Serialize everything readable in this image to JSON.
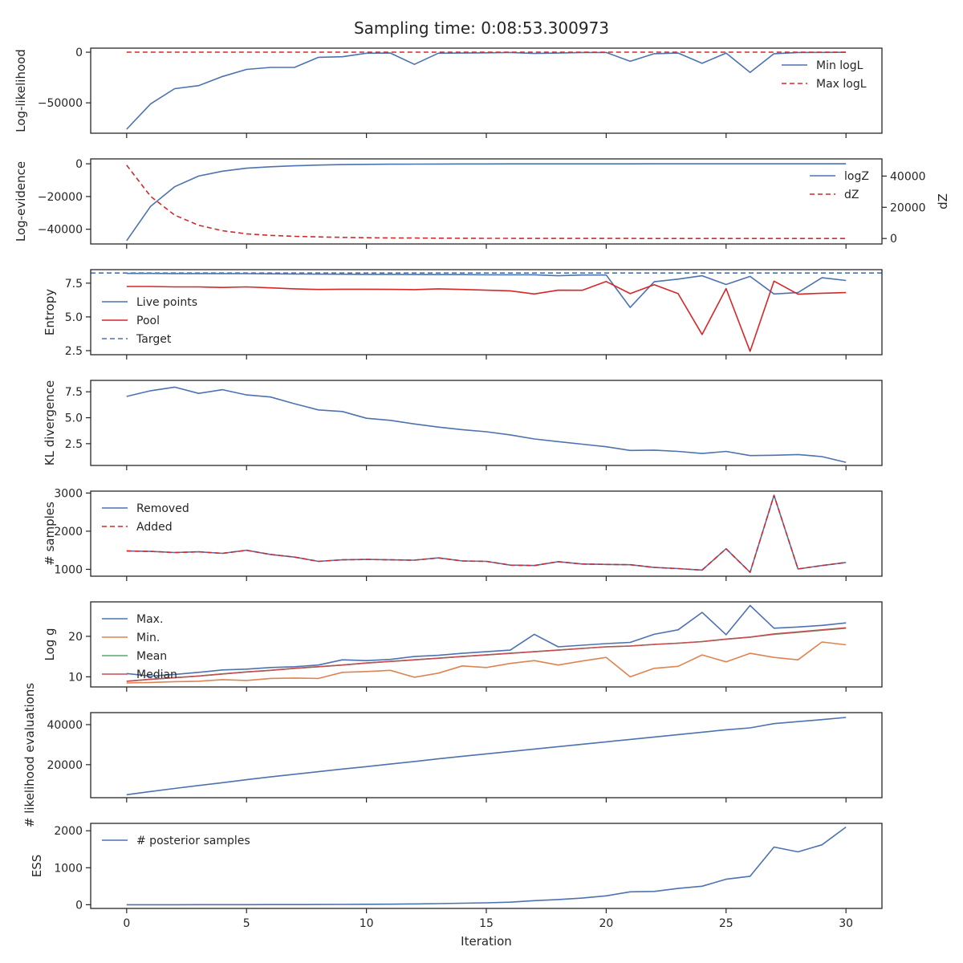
{
  "figure": {
    "title": "Sampling time: 0:08:53.300973",
    "xlabel": "Iteration"
  },
  "colors": {
    "blue": "#4c72b0",
    "red": "#d62728",
    "orange": "#dd8452",
    "green": "#55a868",
    "crimson": "#c44e52",
    "axis": "#262626"
  },
  "chart_data": [
    {
      "type": "line",
      "ylabel": "Log-likelihood",
      "xlim": [
        -1.5,
        31.5
      ],
      "ylim": [
        -80000,
        4000
      ],
      "yticks": [
        0,
        -50000
      ],
      "legend_position": "upper-right",
      "x": [
        0,
        1,
        2,
        3,
        4,
        5,
        6,
        7,
        8,
        9,
        10,
        11,
        12,
        13,
        14,
        15,
        16,
        17,
        18,
        19,
        20,
        21,
        22,
        23,
        24,
        25,
        26,
        27,
        28,
        29,
        30
      ],
      "series": [
        {
          "name": "Min logL",
          "color": "#4c72b0",
          "dash": "solid",
          "values": [
            -76000,
            -51000,
            -36000,
            -33000,
            -24000,
            -17000,
            -15000,
            -15000,
            -5000,
            -4500,
            -1000,
            -800,
            -12000,
            -1000,
            -800,
            -600,
            -300,
            -1200,
            -800,
            -300,
            -300,
            -9000,
            -1500,
            -800,
            -11000,
            -800,
            -20000,
            -1500,
            -300,
            -200,
            -100
          ]
        },
        {
          "name": "Max logL",
          "color": "#d62728",
          "dash": "dashed",
          "values": [
            0,
            0,
            0,
            0,
            0,
            0,
            0,
            0,
            0,
            0,
            0,
            0,
            0,
            0,
            0,
            0,
            0,
            0,
            0,
            0,
            0,
            0,
            0,
            0,
            0,
            0,
            0,
            0,
            0,
            0,
            0
          ]
        }
      ]
    },
    {
      "type": "line",
      "ylabel": "Log-evidence",
      "ylabel_right": "dZ",
      "xlim": [
        -1.5,
        31.5
      ],
      "ylim": [
        -49000,
        3000
      ],
      "yticks": [
        0,
        -20000,
        -40000
      ],
      "ylim_right": [
        -3500,
        51000
      ],
      "yticks_right": [
        40000,
        20000,
        0
      ],
      "legend_position": "upper-right",
      "x": [
        0,
        1,
        2,
        3,
        4,
        5,
        6,
        7,
        8,
        9,
        10,
        11,
        12,
        13,
        14,
        15,
        16,
        17,
        18,
        19,
        20,
        21,
        22,
        23,
        24,
        25,
        26,
        27,
        28,
        29,
        30
      ],
      "series": [
        {
          "name": "logZ",
          "color": "#4c72b0",
          "dash": "solid",
          "axis": "left",
          "values": [
            -47000,
            -26000,
            -14000,
            -7500,
            -4500,
            -2700,
            -1800,
            -1200,
            -800,
            -500,
            -350,
            -250,
            -180,
            -130,
            -100,
            -80,
            -60,
            -50,
            -40,
            -30,
            -25,
            -20,
            -15,
            -12,
            -10,
            -8,
            -6,
            -5,
            -4,
            -3,
            -2
          ]
        },
        {
          "name": "dZ",
          "color": "#d62728",
          "dash": "dashed",
          "axis": "right",
          "values": [
            47000,
            27000,
            15000,
            8500,
            5000,
            3000,
            2000,
            1400,
            1000,
            700,
            500,
            380,
            280,
            200,
            150,
            110,
            80,
            60,
            50,
            40,
            30,
            25,
            20,
            15,
            12,
            10,
            8,
            6,
            5,
            4,
            3
          ]
        }
      ]
    },
    {
      "type": "line",
      "ylabel": "Entropy",
      "xlim": [
        -1.5,
        31.5
      ],
      "ylim": [
        2.2,
        8.5
      ],
      "yticks": [
        7.5,
        5.0,
        2.5
      ],
      "yticklabels": [
        "7.5",
        "5.0",
        "2.5"
      ],
      "legend_position": "left",
      "x": [
        0,
        1,
        2,
        3,
        4,
        5,
        6,
        7,
        8,
        9,
        10,
        11,
        12,
        13,
        14,
        15,
        16,
        17,
        18,
        19,
        20,
        21,
        22,
        23,
        24,
        25,
        26,
        27,
        28,
        29,
        30
      ],
      "series": [
        {
          "name": "Live points",
          "color": "#4c72b0",
          "dash": "solid",
          "values": [
            8.22,
            8.22,
            8.21,
            8.21,
            8.21,
            8.2,
            8.19,
            8.18,
            8.17,
            8.16,
            8.15,
            8.15,
            8.14,
            8.13,
            8.13,
            8.12,
            8.12,
            8.12,
            8.05,
            8.1,
            8.1,
            5.7,
            7.6,
            7.8,
            8.05,
            7.4,
            8.0,
            6.7,
            6.8,
            7.9,
            7.7
          ]
        },
        {
          "name": "Pool",
          "color": "#d62728",
          "dash": "solid",
          "values": [
            7.25,
            7.25,
            7.22,
            7.22,
            7.18,
            7.22,
            7.15,
            7.08,
            7.03,
            7.05,
            7.05,
            7.04,
            7.02,
            7.08,
            7.03,
            6.98,
            6.93,
            6.7,
            6.98,
            6.97,
            7.62,
            6.72,
            7.38,
            6.72,
            3.7,
            7.1,
            2.45,
            7.65,
            6.68,
            6.75,
            6.8
          ]
        },
        {
          "name": "Target",
          "color": "#4c72b0",
          "dash": "dashed",
          "hline": 8.25
        }
      ]
    },
    {
      "type": "line",
      "ylabel": "KL divergence",
      "xlim": [
        -1.5,
        31.5
      ],
      "ylim": [
        0.4,
        8.6
      ],
      "yticks": [
        7.5,
        5.0,
        2.5
      ],
      "yticklabels": [
        "7.5",
        "5.0",
        "2.5"
      ],
      "x": [
        0,
        1,
        2,
        3,
        4,
        5,
        6,
        7,
        8,
        9,
        10,
        11,
        12,
        13,
        14,
        15,
        16,
        17,
        18,
        19,
        20,
        21,
        22,
        23,
        24,
        25,
        26,
        27,
        28,
        29,
        30
      ],
      "series": [
        {
          "name": "",
          "color": "#4c72b0",
          "dash": "solid",
          "values": [
            7.05,
            7.6,
            7.95,
            7.35,
            7.7,
            7.2,
            7.0,
            6.35,
            5.75,
            5.6,
            4.95,
            4.75,
            4.4,
            4.1,
            3.85,
            3.65,
            3.35,
            2.95,
            2.7,
            2.45,
            2.2,
            1.85,
            1.88,
            1.75,
            1.55,
            1.75,
            1.35,
            1.38,
            1.45,
            1.25,
            0.7
          ]
        }
      ]
    },
    {
      "type": "line",
      "ylabel": "# samples",
      "xlim": [
        -1.5,
        31.5
      ],
      "ylim": [
        820,
        3050
      ],
      "yticks": [
        3000,
        2000,
        1000
      ],
      "legend_position": "upper-left",
      "x": [
        0,
        1,
        2,
        3,
        4,
        5,
        6,
        7,
        8,
        9,
        10,
        11,
        12,
        13,
        14,
        15,
        16,
        17,
        18,
        19,
        20,
        21,
        22,
        23,
        24,
        25,
        26,
        27,
        28,
        29,
        30
      ],
      "series": [
        {
          "name": "Removed",
          "color": "#4c72b0",
          "dash": "solid",
          "values": [
            1480,
            1470,
            1440,
            1460,
            1420,
            1500,
            1390,
            1320,
            1210,
            1250,
            1260,
            1250,
            1240,
            1300,
            1220,
            1210,
            1110,
            1100,
            1200,
            1140,
            1130,
            1120,
            1050,
            1020,
            980,
            1540,
            920,
            2940,
            1010,
            1100,
            1180
          ]
        },
        {
          "name": "Added",
          "color": "#d62728",
          "dash": "dashed",
          "values": [
            1480,
            1470,
            1440,
            1460,
            1420,
            1500,
            1390,
            1320,
            1210,
            1250,
            1260,
            1250,
            1240,
            1300,
            1220,
            1210,
            1110,
            1100,
            1200,
            1140,
            1130,
            1120,
            1050,
            1020,
            980,
            1540,
            920,
            2940,
            1010,
            1100,
            1180
          ]
        }
      ]
    },
    {
      "type": "line",
      "ylabel": "Log g",
      "xlim": [
        -1.5,
        31.5
      ],
      "ylim": [
        7.5,
        28.5
      ],
      "yticks": [
        20,
        10
      ],
      "legend_position": "upper-left",
      "x": [
        0,
        1,
        2,
        3,
        4,
        5,
        6,
        7,
        8,
        9,
        10,
        11,
        12,
        13,
        14,
        15,
        16,
        17,
        18,
        19,
        20,
        21,
        22,
        23,
        24,
        25,
        26,
        27,
        28,
        29,
        30
      ],
      "series": [
        {
          "name": "Max.",
          "color": "#4c72b0",
          "dash": "solid",
          "values": [
            10.8,
            10.2,
            10.6,
            11.1,
            11.7,
            11.9,
            12.3,
            12.5,
            12.9,
            14.2,
            14.0,
            14.3,
            15.0,
            15.3,
            15.8,
            16.2,
            16.6,
            20.5,
            17.4,
            17.8,
            18.2,
            18.5,
            20.5,
            21.6,
            25.9,
            20.4,
            27.6,
            22.0,
            22.3,
            22.7,
            23.3
          ]
        },
        {
          "name": "Min.",
          "color": "#dd8452",
          "dash": "solid",
          "values": [
            8.5,
            8.6,
            8.8,
            8.9,
            9.3,
            9.1,
            9.6,
            9.7,
            9.6,
            11.1,
            11.3,
            11.6,
            9.9,
            10.9,
            12.7,
            12.3,
            13.3,
            14.0,
            12.9,
            13.9,
            14.8,
            10.0,
            12.1,
            12.6,
            15.4,
            13.7,
            15.8,
            14.8,
            14.2,
            18.6,
            17.9
          ]
        },
        {
          "name": "Mean",
          "color": "#55a868",
          "dash": "solid",
          "values": [
            8.9,
            9.4,
            9.8,
            10.2,
            10.7,
            11.2,
            11.6,
            12.1,
            12.5,
            12.9,
            13.4,
            13.8,
            14.2,
            14.6,
            15.0,
            15.4,
            15.8,
            16.2,
            16.6,
            17.0,
            17.4,
            17.6,
            18.0,
            18.3,
            18.7,
            19.3,
            19.8,
            20.5,
            21.0,
            21.5,
            22.0
          ]
        },
        {
          "name": "Median",
          "color": "#c44e52",
          "dash": "solid",
          "values": [
            8.9,
            9.4,
            9.8,
            10.2,
            10.7,
            11.2,
            11.6,
            12.1,
            12.5,
            12.9,
            13.4,
            13.8,
            14.2,
            14.6,
            15.0,
            15.4,
            15.8,
            16.2,
            16.6,
            17.0,
            17.4,
            17.6,
            18.0,
            18.3,
            18.7,
            19.3,
            19.8,
            20.6,
            21.1,
            21.6,
            22.1
          ]
        }
      ]
    },
    {
      "type": "line",
      "ylabel": "# likelihood evaluations",
      "xlim": [
        -1.5,
        31.5
      ],
      "ylim": [
        3500,
        46000
      ],
      "yticks": [
        40000,
        20000
      ],
      "x": [
        0,
        1,
        2,
        3,
        4,
        5,
        6,
        7,
        8,
        9,
        10,
        11,
        12,
        13,
        14,
        15,
        16,
        17,
        18,
        19,
        20,
        21,
        22,
        23,
        24,
        25,
        26,
        27,
        28,
        29,
        30
      ],
      "series": [
        {
          "name": "",
          "color": "#4c72b0",
          "dash": "solid",
          "values": [
            5000,
            6600,
            8100,
            9600,
            11000,
            12500,
            13900,
            15200,
            16500,
            17800,
            19000,
            20300,
            21600,
            22900,
            24200,
            25400,
            26600,
            27800,
            29000,
            30200,
            31400,
            32600,
            33800,
            35000,
            36200,
            37400,
            38400,
            40500,
            41500,
            42500,
            43600
          ]
        }
      ]
    },
    {
      "type": "line",
      "ylabel": "ESS",
      "xlim": [
        -1.5,
        31.5
      ],
      "ylim": [
        -100,
        2200
      ],
      "yticks": [
        2000,
        1000,
        0
      ],
      "xticks": [
        0,
        5,
        10,
        15,
        20,
        25,
        30
      ],
      "legend_position": "upper-left",
      "x": [
        0,
        1,
        2,
        3,
        4,
        5,
        6,
        7,
        8,
        9,
        10,
        11,
        12,
        13,
        14,
        15,
        16,
        17,
        18,
        19,
        20,
        21,
        22,
        23,
        24,
        25,
        26,
        27,
        28,
        29,
        30
      ],
      "series": [
        {
          "name": "# posterior samples",
          "color": "#4c72b0",
          "dash": "solid",
          "values": [
            0,
            0,
            0,
            1,
            2,
            3,
            4,
            5,
            7,
            9,
            12,
            16,
            22,
            30,
            40,
            52,
            70,
            110,
            140,
            180,
            240,
            350,
            360,
            440,
            500,
            690,
            770,
            1560,
            1430,
            1620,
            2100
          ]
        }
      ]
    }
  ]
}
